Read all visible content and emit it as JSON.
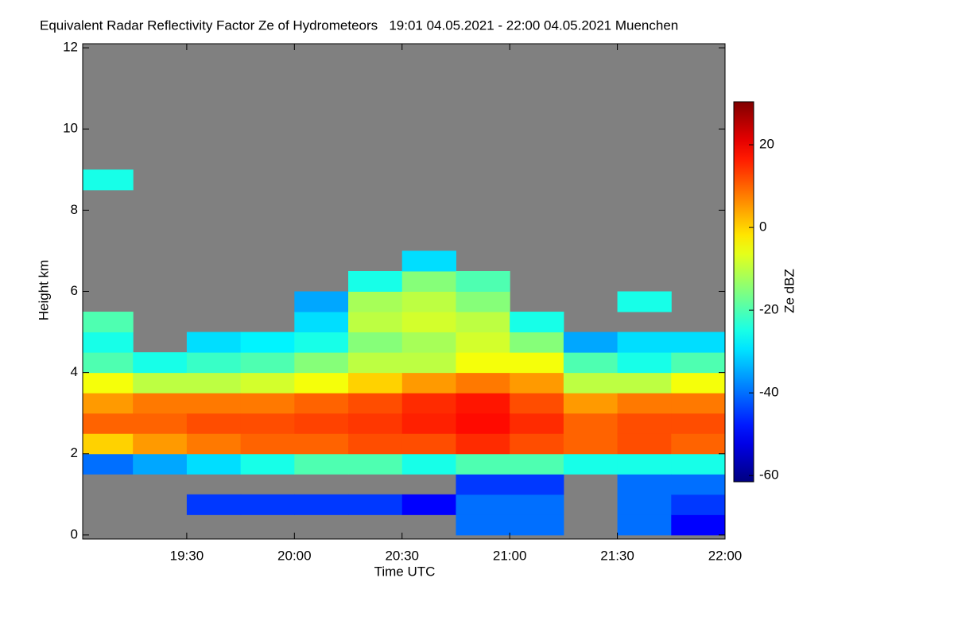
{
  "chart_data": {
    "type": "heatmap",
    "title": "Equivalent Radar Reflectivity Factor Ze of Hydrometeors   19:01 04.05.2021 - 22:00 04.05.2021 Muenchen",
    "x_label": "Time UTC",
    "y_label": "Height km",
    "colorbar_label": "Ze dBZ",
    "colormap": "jet",
    "background": "#808080",
    "x": [
      19.125,
      19.375,
      19.625,
      19.875,
      20.125,
      20.375,
      20.625,
      20.875,
      21.125,
      21.375,
      21.625,
      21.875
    ],
    "y": [
      0.25,
      0.75,
      1.25,
      1.75,
      2.25,
      2.75,
      3.25,
      3.75,
      4.25,
      4.75,
      5.25,
      5.75,
      6.25,
      6.75,
      7.25,
      7.75,
      8.25,
      8.75
    ],
    "z": [
      [
        null,
        null,
        null,
        -40,
        0,
        10,
        5,
        -5,
        -20,
        -25,
        -20,
        null,
        null,
        null,
        null,
        null,
        null,
        -25
      ],
      [
        null,
        null,
        null,
        -35,
        5,
        10,
        8,
        -10,
        -25,
        null,
        null,
        null,
        null,
        null,
        null,
        null,
        null,
        null
      ],
      [
        null,
        -45,
        null,
        -30,
        8,
        12,
        8,
        -10,
        -22,
        -30,
        null,
        null,
        null,
        null,
        null,
        null,
        null,
        null
      ],
      [
        null,
        -45,
        null,
        -25,
        10,
        12,
        8,
        -8,
        -20,
        -28,
        null,
        null,
        null,
        null,
        null,
        null,
        null,
        null
      ],
      [
        null,
        -45,
        null,
        -20,
        10,
        13,
        10,
        -5,
        -15,
        -25,
        -30,
        -35,
        null,
        null,
        null,
        null,
        null,
        null
      ],
      [
        null,
        -45,
        null,
        -20,
        12,
        14,
        12,
        0,
        -10,
        -15,
        -10,
        -12,
        -25,
        null,
        null,
        null,
        null,
        null
      ],
      [
        null,
        -50,
        null,
        -25,
        12,
        16,
        15,
        5,
        -10,
        -12,
        -8,
        -10,
        -15,
        -30,
        null,
        null,
        null,
        null
      ],
      [
        -40,
        -40,
        -45,
        -20,
        15,
        18,
        17,
        8,
        -5,
        -8,
        -10,
        -15,
        -20,
        null,
        null,
        null,
        null,
        null
      ],
      [
        -40,
        -40,
        -45,
        -20,
        12,
        15,
        12,
        5,
        -5,
        -15,
        -25,
        null,
        null,
        null,
        null,
        null,
        null,
        null
      ],
      [
        null,
        null,
        null,
        -25,
        10,
        10,
        5,
        -10,
        -20,
        -35,
        null,
        null,
        null,
        null,
        null,
        null,
        null,
        null
      ],
      [
        -40,
        -40,
        -40,
        -25,
        12,
        12,
        8,
        -10,
        -25,
        -30,
        null,
        -25,
        null,
        null,
        null,
        null,
        null,
        null
      ],
      [
        -50,
        -45,
        -40,
        -25,
        10,
        12,
        8,
        -5,
        -20,
        -30,
        null,
        null,
        null,
        null,
        null,
        null,
        null,
        null
      ]
    ],
    "xlim": [
      19.0167,
      22.0
    ],
    "xticks": [
      {
        "value": 19.5,
        "label": "19:30"
      },
      {
        "value": 20.0,
        "label": "20:00"
      },
      {
        "value": 20.5,
        "label": "20:30"
      },
      {
        "value": 21.0,
        "label": "21:00"
      },
      {
        "value": 21.5,
        "label": "21:30"
      },
      {
        "value": 22.0,
        "label": "22:00"
      }
    ],
    "ylim": [
      -0.1,
      12.1
    ],
    "yticks": [
      0,
      2,
      4,
      6,
      8,
      10,
      12
    ],
    "clim": [
      -61.5,
      30.4
    ],
    "cticks": [
      -60,
      -40,
      -20,
      0,
      20
    ]
  }
}
